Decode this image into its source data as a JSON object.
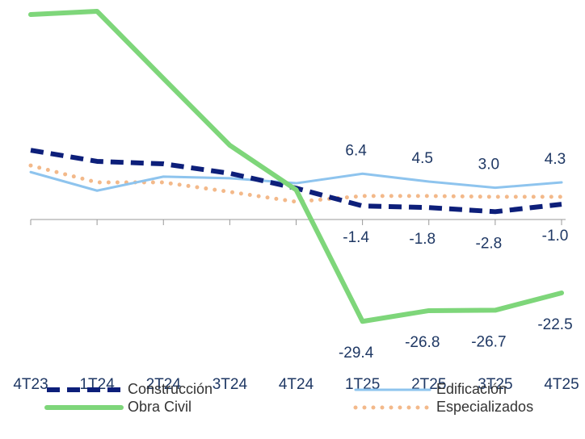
{
  "chart_data": {
    "type": "line",
    "categories": [
      "4T23",
      "1T24",
      "2T24",
      "3T24",
      "4T24",
      "1T25",
      "2T25",
      "3T25",
      "4T25"
    ],
    "series": [
      {
        "name": "Construcción",
        "color": "#0d1f7a",
        "style": "dashed",
        "values": [
          12.1,
          9.4,
          8.8,
          6.5,
          2.9,
          -1.4,
          -1.8,
          -2.8,
          -1.0
        ],
        "value_labels": [
          null,
          null,
          null,
          null,
          null,
          "-1.4",
          "-1.8",
          "-2.8",
          "-1.0"
        ]
      },
      {
        "name": "Edificación",
        "color": "#8ec4ee",
        "style": "solid",
        "values": [
          6.8,
          2.3,
          5.7,
          5.3,
          4.1,
          6.4,
          4.5,
          3.0,
          4.3
        ],
        "value_labels": [
          null,
          null,
          null,
          null,
          null,
          "6.4",
          "4.5",
          "3.0",
          "4.3"
        ]
      },
      {
        "name": "Obra Civil",
        "color": "#7ed67a",
        "style": "thick",
        "values": [
          45.0,
          45.8,
          29.5,
          13.3,
          2.5,
          -29.4,
          -26.8,
          -26.7,
          -22.5
        ],
        "value_labels": [
          null,
          null,
          null,
          null,
          null,
          "-29.4",
          "-26.8",
          "-26.7",
          "-22.5"
        ]
      },
      {
        "name": "Especializados",
        "color": "#f3b98a",
        "style": "dotted",
        "values": [
          8.4,
          4.3,
          4.3,
          2.0,
          -0.4,
          1.0,
          1.0,
          0.8,
          0.8
        ]
      }
    ]
  }
}
